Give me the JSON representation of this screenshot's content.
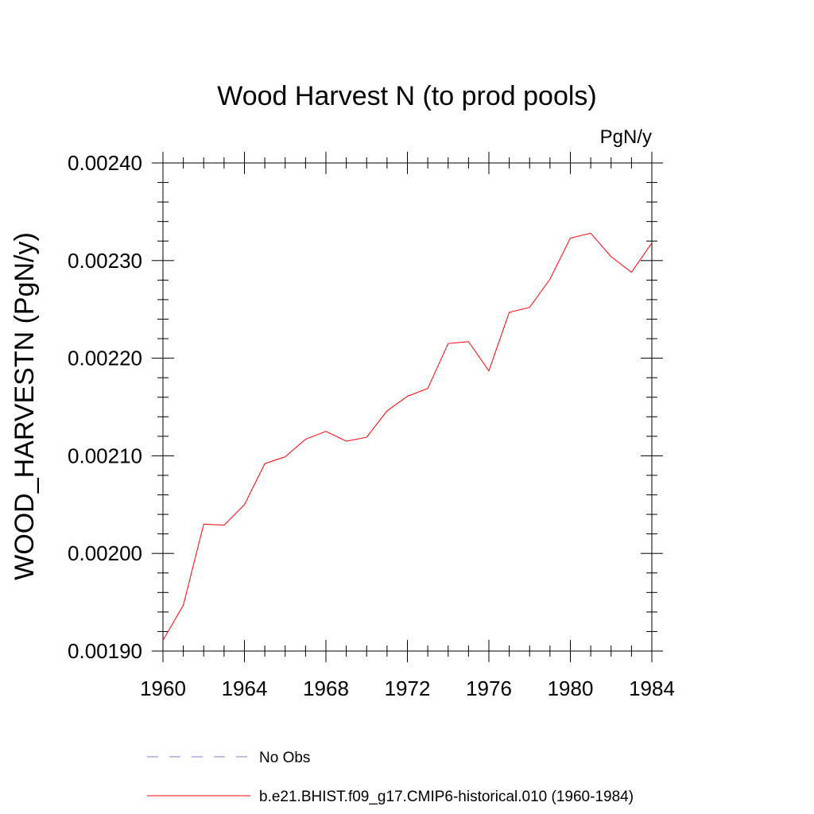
{
  "chart_data": {
    "type": "line",
    "title": "Wood Harvest N (to prod pools)",
    "units": "PgN/y",
    "ylabel": "WOOD_HARVESTN  (PgN/y)",
    "xlabel": "",
    "xlim": [
      1960,
      1984
    ],
    "ylim": [
      0.0019,
      0.0024
    ],
    "xticks": [
      "1960",
      "1964",
      "1968",
      "1972",
      "1976",
      "1980",
      "1984"
    ],
    "yticks": [
      "0.00190",
      "0.00200",
      "0.00210",
      "0.00220",
      "0.00230",
      "0.00240"
    ],
    "grid": false,
    "legend_position": "bottom",
    "series": [
      {
        "name": "No Obs",
        "color": "#7b7bd8",
        "style": "dashed",
        "x": [],
        "y": []
      },
      {
        "name": "b.e21.BHIST.f09_g17.CMIP6-historical.010 (1960-1984)",
        "color": "#ff0000",
        "style": "solid",
        "x": [
          1960,
          1961,
          1962,
          1963,
          1964,
          1965,
          1966,
          1967,
          1968,
          1969,
          1970,
          1971,
          1972,
          1973,
          1974,
          1975,
          1976,
          1977,
          1978,
          1979,
          1980,
          1981,
          1982,
          1983,
          1984
        ],
        "y": [
          0.001911,
          0.001947,
          0.00203,
          0.002029,
          0.00205,
          0.002092,
          0.002099,
          0.002117,
          0.002125,
          0.002115,
          0.002119,
          0.002146,
          0.002161,
          0.002169,
          0.002215,
          0.002217,
          0.002187,
          0.002247,
          0.002252,
          0.002281,
          0.002323,
          0.002328,
          0.002304,
          0.002288,
          0.002318
        ]
      }
    ]
  }
}
